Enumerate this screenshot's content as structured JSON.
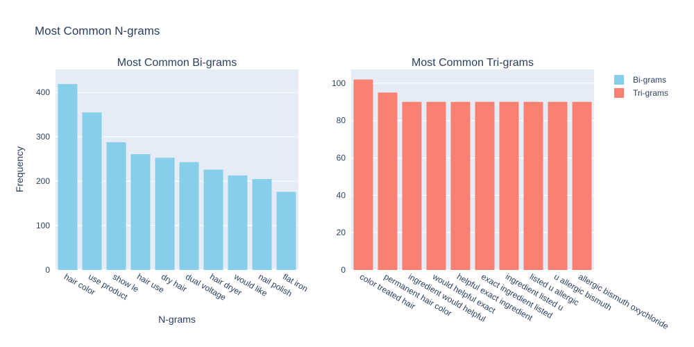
{
  "title": "Most Common N-grams",
  "legend": {
    "position": "top-right",
    "items": [
      {
        "label": "Bi-grams",
        "color": "#87ceeb"
      },
      {
        "label": "Tri-grams",
        "color": "#fa8072"
      }
    ]
  },
  "chart_data": [
    {
      "type": "bar",
      "title": "Most Common Bi-grams",
      "xlabel": "N-grams",
      "ylabel": "Frequency",
      "color": "#87ceeb",
      "series_name": "Bi-grams",
      "categories": [
        "hair color",
        "use product",
        "show le",
        "hair use",
        "dry hair",
        "dual voltage",
        "hair dryer",
        "would like",
        "nail polish",
        "flat iron"
      ],
      "values": [
        419,
        355,
        288,
        261,
        253,
        243,
        226,
        213,
        205,
        176
      ],
      "ylim": [
        0,
        452
      ],
      "yticks": [
        0,
        100,
        200,
        300,
        400
      ],
      "grid": true
    },
    {
      "type": "bar",
      "title": "Most Common Tri-grams",
      "xlabel": "",
      "ylabel": "",
      "color": "#fa8072",
      "series_name": "Tri-grams",
      "categories": [
        "color treated hair",
        "permanent hair color",
        "ingredient would helpful",
        "would helpful exact",
        "helpful exact ingredient",
        "exact ingredient listed",
        "ingredient listed u",
        "listed u allergic",
        "u allergic bismuth",
        "allergic bismuth oxychloride"
      ],
      "values": [
        102,
        95,
        90,
        90,
        90,
        90,
        90,
        90,
        90,
        90
      ],
      "ylim": [
        0,
        107.4
      ],
      "yticks": [
        0,
        20,
        40,
        60,
        80,
        100
      ],
      "grid": true
    }
  ]
}
